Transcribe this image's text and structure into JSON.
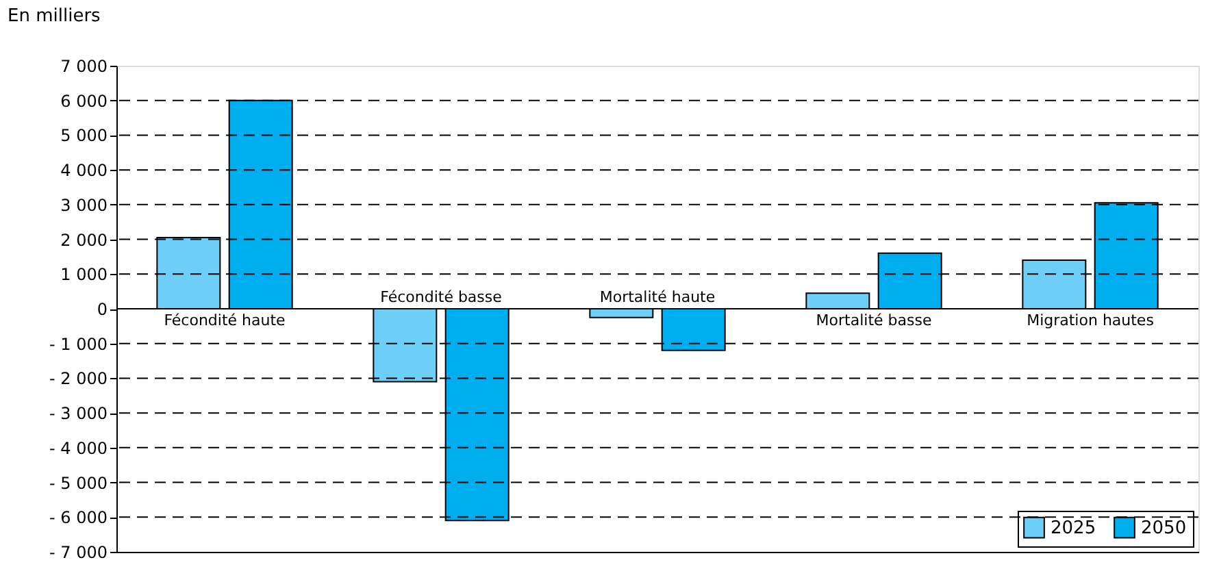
{
  "chart_data": {
    "type": "bar",
    "ylabel": "En milliers",
    "categories": [
      "Fécondité haute",
      "Fécondité basse",
      "Mortalité haute",
      "Mortalité basse",
      "Migration hautes"
    ],
    "series": [
      {
        "name": "2025",
        "color": "#6dcff6",
        "values": [
          2050,
          -2100,
          -250,
          450,
          1400
        ]
      },
      {
        "name": "2050",
        "color": "#00aeef",
        "values": [
          6000,
          -6100,
          -1200,
          1600,
          3050
        ]
      }
    ],
    "ylim": [
      -7000,
      7000
    ],
    "yticks": [
      {
        "value": -7000,
        "label": "- 7 000"
      },
      {
        "value": -6000,
        "label": "- 6 000"
      },
      {
        "value": -5000,
        "label": "- 5 000"
      },
      {
        "value": -4000,
        "label": "- 4 000"
      },
      {
        "value": -3000,
        "label": "- 3 000"
      },
      {
        "value": -2000,
        "label": "- 2 000"
      },
      {
        "value": -1000,
        "label": "- 1 000"
      },
      0,
      {
        "value": 1000,
        "label": "1 000"
      },
      {
        "value": 2000,
        "label": "2 000"
      },
      {
        "value": 3000,
        "label": "3 000"
      },
      {
        "value": 4000,
        "label": "4 000"
      },
      {
        "value": 5000,
        "label": "5 000"
      },
      {
        "value": 6000,
        "label": "6 000"
      },
      {
        "value": 7000,
        "label": "7 000"
      }
    ],
    "grid": "y",
    "legend": "bottom right"
  }
}
